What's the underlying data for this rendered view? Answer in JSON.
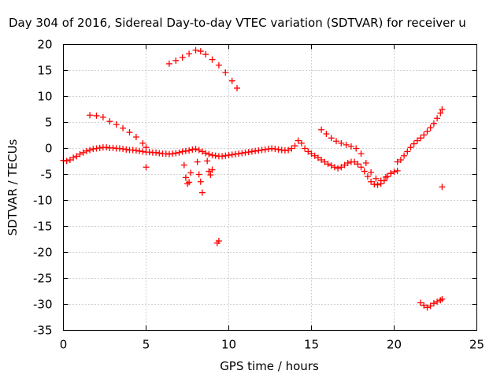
{
  "chart_data": {
    "type": "scatter",
    "title": "Day 304 of 2016, Sidereal Day-to-day VTEC variation (SDTVAR) for receiver u",
    "xlabel": "GPS time / hours",
    "ylabel": "SDTVAR / TECUs",
    "xlim": [
      0,
      25
    ],
    "ylim": [
      -35,
      20
    ],
    "xticks": [
      0,
      5,
      10,
      15,
      20,
      25
    ],
    "yticks": [
      20,
      15,
      10,
      5,
      0,
      -5,
      -10,
      -15,
      -20,
      -25,
      -30,
      -35
    ],
    "grid": true,
    "marker": "+",
    "color": "#ff0000",
    "series": [
      {
        "name": "main",
        "points": [
          [
            0.0,
            -2.3
          ],
          [
            0.2,
            -2.4
          ],
          [
            0.4,
            -2.2
          ],
          [
            0.6,
            -1.8
          ],
          [
            0.8,
            -1.5
          ],
          [
            1.0,
            -1.1
          ],
          [
            1.2,
            -0.8
          ],
          [
            1.4,
            -0.5
          ],
          [
            1.6,
            -0.3
          ],
          [
            1.8,
            -0.1
          ],
          [
            2.0,
            0.0
          ],
          [
            2.2,
            0.1
          ],
          [
            2.4,
            0.2
          ],
          [
            2.6,
            0.2
          ],
          [
            2.8,
            0.1
          ],
          [
            3.0,
            0.1
          ],
          [
            3.2,
            0.0
          ],
          [
            3.4,
            0.0
          ],
          [
            3.6,
            -0.1
          ],
          [
            3.8,
            -0.2
          ],
          [
            4.0,
            -0.3
          ],
          [
            4.2,
            -0.3
          ],
          [
            4.4,
            -0.4
          ],
          [
            4.6,
            -0.5
          ],
          [
            4.8,
            -0.6
          ],
          [
            5.0,
            -0.7
          ],
          [
            5.2,
            -0.7
          ],
          [
            5.4,
            -0.8
          ],
          [
            5.6,
            -0.8
          ],
          [
            5.8,
            -0.9
          ],
          [
            6.0,
            -1.0
          ],
          [
            6.2,
            -1.0
          ],
          [
            6.4,
            -1.1
          ],
          [
            6.6,
            -1.0
          ],
          [
            6.8,
            -0.9
          ],
          [
            7.0,
            -0.8
          ],
          [
            7.2,
            -0.6
          ],
          [
            7.4,
            -0.5
          ],
          [
            7.6,
            -0.4
          ],
          [
            7.8,
            -0.2
          ],
          [
            8.0,
            -0.1
          ],
          [
            8.2,
            -0.3
          ],
          [
            8.4,
            -0.6
          ],
          [
            8.6,
            -0.9
          ],
          [
            8.8,
            -1.1
          ],
          [
            9.0,
            -1.3
          ],
          [
            9.2,
            -1.4
          ],
          [
            9.4,
            -1.5
          ],
          [
            9.6,
            -1.5
          ],
          [
            9.8,
            -1.4
          ],
          [
            10.0,
            -1.3
          ],
          [
            10.2,
            -1.2
          ],
          [
            10.4,
            -1.1
          ],
          [
            10.6,
            -1.0
          ],
          [
            10.8,
            -0.9
          ],
          [
            11.0,
            -0.8
          ],
          [
            11.2,
            -0.7
          ],
          [
            11.4,
            -0.6
          ],
          [
            11.6,
            -0.5
          ],
          [
            11.8,
            -0.4
          ],
          [
            12.0,
            -0.3
          ],
          [
            12.2,
            -0.2
          ],
          [
            12.4,
            -0.1
          ],
          [
            12.6,
            0.0
          ],
          [
            12.8,
            -0.1
          ],
          [
            13.0,
            -0.2
          ],
          [
            13.2,
            -0.3
          ],
          [
            13.4,
            -0.4
          ],
          [
            13.6,
            -0.3
          ],
          [
            13.8,
            0.0
          ],
          [
            14.0,
            0.5
          ],
          [
            14.2,
            1.5
          ],
          [
            14.4,
            1.0
          ],
          [
            14.6,
            0.0
          ],
          [
            14.8,
            -0.6
          ],
          [
            15.0,
            -1.0
          ],
          [
            15.2,
            -1.4
          ],
          [
            15.4,
            -1.8
          ],
          [
            15.6,
            -2.2
          ],
          [
            15.8,
            -2.6
          ],
          [
            16.0,
            -3.0
          ],
          [
            16.2,
            -3.3
          ],
          [
            16.4,
            -3.6
          ],
          [
            16.6,
            -3.8
          ],
          [
            16.8,
            -3.6
          ],
          [
            17.0,
            -3.2
          ],
          [
            17.2,
            -2.8
          ],
          [
            17.4,
            -2.6
          ],
          [
            17.6,
            -2.6
          ],
          [
            17.8,
            -3.0
          ],
          [
            18.0,
            -3.6
          ],
          [
            18.2,
            -4.4
          ],
          [
            18.4,
            -5.4
          ],
          [
            18.6,
            -6.4
          ],
          [
            18.8,
            -6.9
          ],
          [
            19.0,
            -7.0
          ],
          [
            19.2,
            -6.8
          ],
          [
            19.4,
            -6.2
          ],
          [
            19.6,
            -5.4
          ],
          [
            19.8,
            -4.8
          ],
          [
            20.0,
            -4.5
          ],
          [
            20.2,
            -4.3
          ]
        ]
      },
      {
        "name": "arc-top",
        "points": [
          [
            6.4,
            16.3
          ],
          [
            6.8,
            16.9
          ],
          [
            7.2,
            17.5
          ],
          [
            7.6,
            18.2
          ],
          [
            8.0,
            18.9
          ],
          [
            8.3,
            18.7
          ],
          [
            8.6,
            18.1
          ],
          [
            9.0,
            17.1
          ],
          [
            9.4,
            16.0
          ],
          [
            9.8,
            14.6
          ],
          [
            10.2,
            13.0
          ],
          [
            10.5,
            11.6
          ]
        ]
      },
      {
        "name": "decline-early",
        "points": [
          [
            1.6,
            6.4
          ],
          [
            2.0,
            6.3
          ],
          [
            2.4,
            6.0
          ],
          [
            2.8,
            5.2
          ],
          [
            3.2,
            4.6
          ],
          [
            3.6,
            3.9
          ],
          [
            4.0,
            3.1
          ],
          [
            4.4,
            2.2
          ],
          [
            4.8,
            1.0
          ],
          [
            5.0,
            0.2
          ]
        ]
      },
      {
        "name": "decline-late",
        "points": [
          [
            15.6,
            3.6
          ],
          [
            15.9,
            2.8
          ],
          [
            16.2,
            2.0
          ],
          [
            16.5,
            1.4
          ],
          [
            16.8,
            1.0
          ],
          [
            17.1,
            0.7
          ],
          [
            17.4,
            0.4
          ],
          [
            17.7,
            0.0
          ],
          [
            18.0,
            -1.0
          ],
          [
            18.3,
            -2.8
          ],
          [
            18.6,
            -4.6
          ],
          [
            18.9,
            -5.8
          ],
          [
            19.2,
            -6.2
          ],
          [
            19.5,
            -5.5
          ],
          [
            19.8,
            -4.8
          ]
        ]
      },
      {
        "name": "rise-end",
        "points": [
          [
            20.2,
            -2.6
          ],
          [
            20.4,
            -2.2
          ],
          [
            20.6,
            -1.4
          ],
          [
            20.8,
            -0.6
          ],
          [
            21.0,
            0.2
          ],
          [
            21.2,
            0.9
          ],
          [
            21.4,
            1.5
          ],
          [
            21.6,
            2.0
          ],
          [
            21.8,
            2.6
          ],
          [
            22.0,
            3.3
          ],
          [
            22.2,
            4.0
          ],
          [
            22.4,
            4.8
          ],
          [
            22.6,
            5.8
          ],
          [
            22.8,
            6.8
          ],
          [
            22.9,
            7.5
          ]
        ]
      },
      {
        "name": "spikes",
        "points": [
          [
            5.0,
            -3.6
          ],
          [
            7.3,
            -3.2
          ],
          [
            7.4,
            -5.6
          ],
          [
            7.5,
            -6.8
          ],
          [
            7.6,
            -6.5
          ],
          [
            7.7,
            -4.7
          ],
          [
            8.1,
            -2.6
          ],
          [
            8.2,
            -5.0
          ],
          [
            8.3,
            -6.4
          ],
          [
            8.4,
            -8.5
          ],
          [
            8.7,
            -2.4
          ],
          [
            8.8,
            -4.4
          ],
          [
            8.9,
            -5.1
          ],
          [
            9.0,
            -4.1
          ]
        ]
      },
      {
        "name": "outliers",
        "points": [
          [
            9.3,
            -18.2
          ],
          [
            9.4,
            -17.8
          ],
          [
            22.9,
            -7.4
          ]
        ]
      },
      {
        "name": "bottom",
        "points": [
          [
            21.6,
            -29.7
          ],
          [
            21.8,
            -30.2
          ],
          [
            22.0,
            -30.6
          ],
          [
            22.2,
            -30.3
          ],
          [
            22.4,
            -29.8
          ],
          [
            22.6,
            -29.5
          ],
          [
            22.8,
            -29.2
          ],
          [
            22.9,
            -29.0
          ]
        ]
      }
    ]
  }
}
